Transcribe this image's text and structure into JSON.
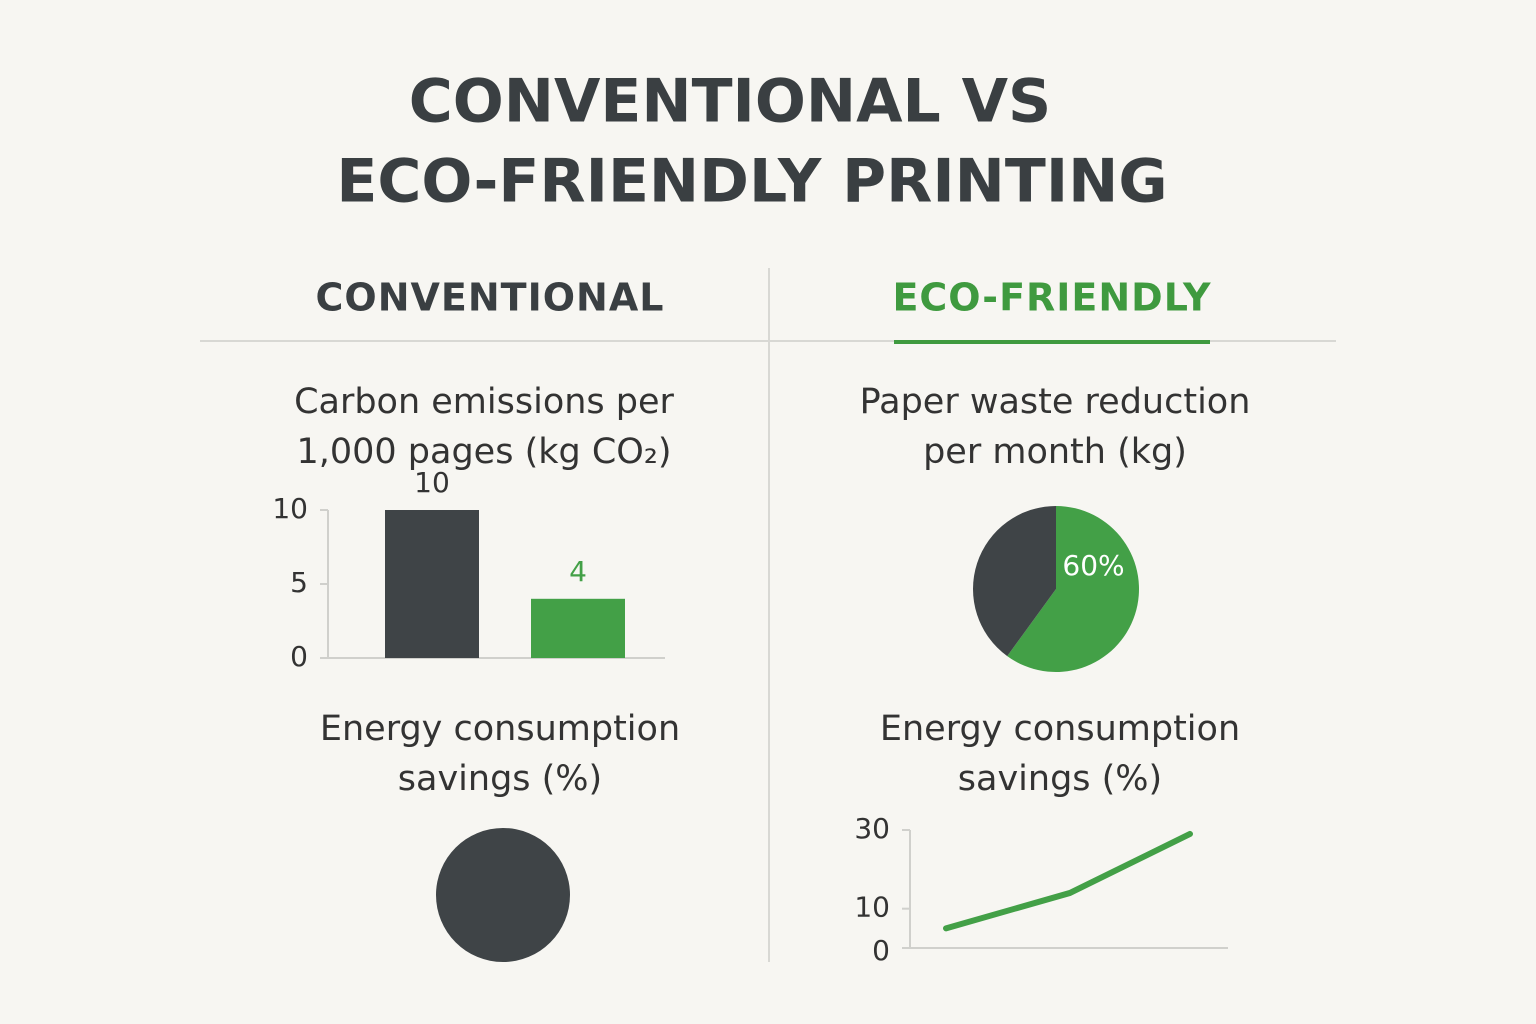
{
  "title": [
    "CONVENTIONAL VS",
    "ECO-FRIENDLY PRINTING"
  ],
  "columns": [
    "CONVENTIONAL",
    "ECO-FRIENDLY"
  ],
  "chart_data": [
    {
      "type": "bar",
      "title": [
        "Carbon emissions per",
        "1,000 pages (kg CO₂)"
      ],
      "categories": [
        null,
        null
      ],
      "values": [
        10,
        4
      ],
      "colors": [
        "#3f4447",
        "#43a047"
      ],
      "ylim": [
        0,
        10
      ],
      "yticks": [
        0,
        5,
        10
      ]
    },
    {
      "type": "pie",
      "title": [
        "Paper waste reduction",
        "per month (kg)"
      ],
      "values": [
        60,
        40
      ],
      "value_labels": [
        "60%",
        null
      ],
      "colors": [
        "#43a047",
        "#3f4447"
      ]
    },
    {
      "type": "pie",
      "title": [
        "Energy consumption",
        "savings (%)"
      ],
      "values": [
        100
      ],
      "colors": [
        "#3f4447"
      ]
    },
    {
      "type": "line",
      "title": [
        "Energy consumption",
        "savings (%)"
      ],
      "categories": [
        null,
        null,
        null
      ],
      "values": [
        5,
        14,
        29
      ],
      "color": "#43a047",
      "ylim": [
        0,
        30
      ],
      "yticks": [
        0,
        10,
        30
      ]
    }
  ]
}
